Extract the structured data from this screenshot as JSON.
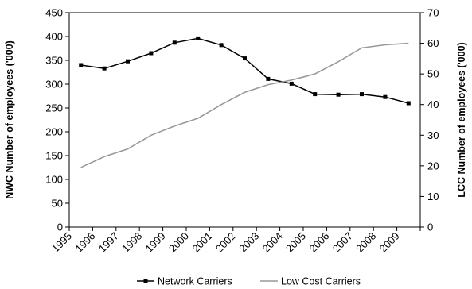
{
  "chart_data": {
    "type": "line",
    "x_categories": [
      "1995",
      "1996",
      "1997",
      "1998",
      "1999",
      "2000",
      "2001",
      "2002",
      "2003",
      "2004",
      "2005",
      "2006",
      "2007",
      "2008",
      "2009"
    ],
    "ylabel_left": "NWC Number of employees ('000)",
    "ylabel_right": "LCC Number of employees ('000)",
    "ylim_left": [
      0,
      450
    ],
    "yticks_left": [
      "0",
      "50",
      "100",
      "150",
      "200",
      "250",
      "300",
      "350",
      "400",
      "450"
    ],
    "ylim_right": [
      0,
      70
    ],
    "yticks_right": [
      "0",
      "10",
      "20",
      "30",
      "40",
      "50",
      "60",
      "70"
    ],
    "grid": false,
    "legend_position": "bottom",
    "series": [
      {
        "name": "Network Carriers",
        "axis": "left",
        "color": "#000000",
        "marker": "square",
        "values": [
          340,
          333,
          348,
          365,
          387,
          396,
          382,
          354,
          311,
          301,
          279,
          278,
          279,
          273,
          260
        ]
      },
      {
        "name": "Low Cost Carriers",
        "axis": "right",
        "color": "#999999",
        "marker": "none",
        "values": [
          19.5,
          23,
          25.5,
          30,
          33,
          35.5,
          40,
          44,
          46.5,
          48,
          50,
          54,
          58.5,
          59.5,
          60
        ]
      }
    ]
  }
}
